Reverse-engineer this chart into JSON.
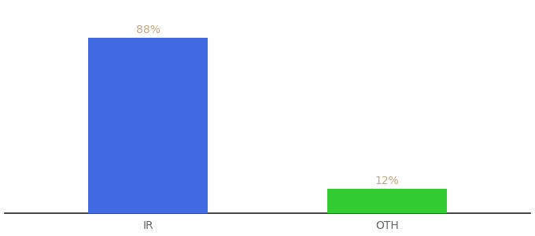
{
  "categories": [
    "IR",
    "OTH"
  ],
  "values": [
    88,
    12
  ],
  "bar_colors": [
    "#4169e1",
    "#33cc33"
  ],
  "label_texts": [
    "88%",
    "12%"
  ],
  "label_color": "#c8a882",
  "label_fontsize": 10,
  "tick_fontsize": 10,
  "tick_color": "#666666",
  "background_color": "#ffffff",
  "ylim": [
    0,
    105
  ],
  "bar_width": 0.5,
  "spine_color": "#222222",
  "xlim": [
    -0.6,
    1.6
  ]
}
